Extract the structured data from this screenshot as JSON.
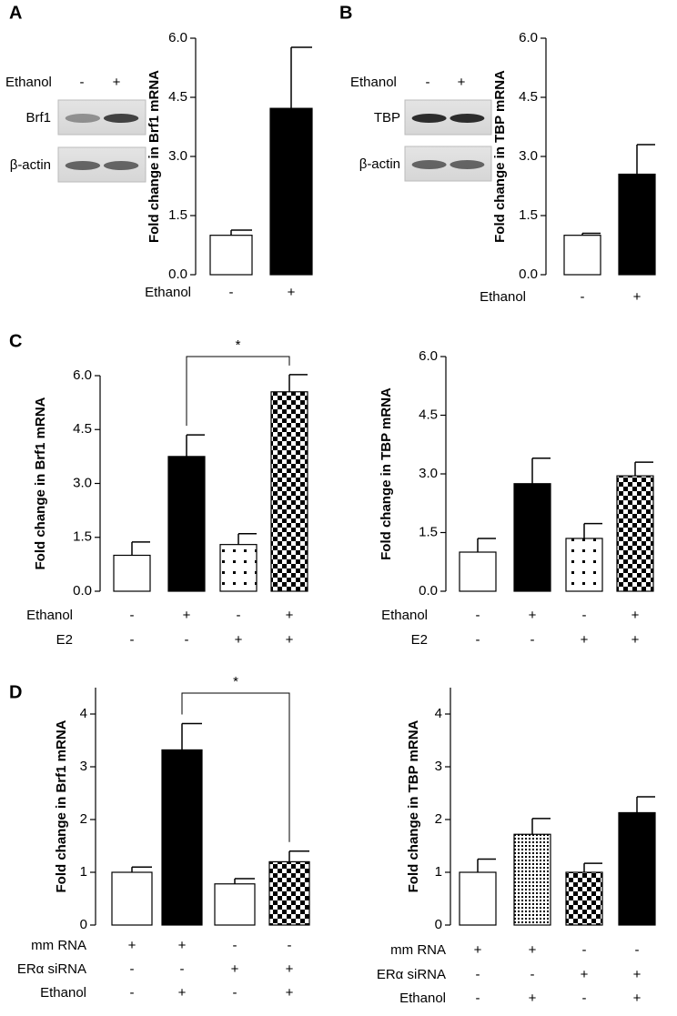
{
  "chart_data": [
    {
      "type": "bar",
      "panel": "A",
      "ylabel": "Fold change in Brf1 mRNA",
      "blot": {
        "header": "Ethanol",
        "lanes": [
          "-",
          "+"
        ],
        "rows": [
          "Brf1",
          "β-actin"
        ]
      },
      "ylim": [
        0,
        6
      ],
      "yticks": [
        {
          "value": 0,
          "label": "0.0"
        },
        {
          "value": 1.5,
          "label": "1.5"
        },
        {
          "value": 3,
          "label": "3.0"
        },
        {
          "value": 4.5,
          "label": "4.5"
        },
        {
          "value": 6,
          "label": "6.0"
        }
      ],
      "values": [
        1.0,
        4.22
      ],
      "errors": [
        0.13,
        1.55
      ],
      "fills": [
        "white",
        "black"
      ],
      "condition_rows": [
        {
          "label": "Ethanol",
          "marks": [
            "-",
            "+"
          ]
        }
      ]
    },
    {
      "type": "bar",
      "panel": "B",
      "ylabel": "Fold change in TBP mRNA",
      "blot": {
        "header": "Ethanol",
        "lanes": [
          "-",
          "+"
        ],
        "rows": [
          "TBP",
          "β-actin"
        ]
      },
      "ylim": [
        0,
        6
      ],
      "yticks": [
        {
          "value": 0,
          "label": "0.0"
        },
        {
          "value": 1.5,
          "label": "1.5"
        },
        {
          "value": 3,
          "label": "3.0"
        },
        {
          "value": 4.5,
          "label": "4.5"
        },
        {
          "value": 6,
          "label": "6.0"
        }
      ],
      "values": [
        1.0,
        2.55
      ],
      "errors": [
        0.05,
        0.75
      ],
      "fills": [
        "white",
        "black"
      ],
      "condition_rows": [
        {
          "label": "Ethanol",
          "marks": [
            "-",
            "+"
          ]
        }
      ]
    },
    {
      "type": "bar",
      "panel": "C",
      "ylabel": "Fold change in Brf1 mRNA",
      "significance": "*",
      "ylim": [
        0,
        6
      ],
      "yticks": [
        {
          "value": 0,
          "label": "0.0"
        },
        {
          "value": 1.5,
          "label": "1.5"
        },
        {
          "value": 3,
          "label": "3.0"
        },
        {
          "value": 4.5,
          "label": "4.5"
        },
        {
          "value": 6,
          "label": "6.0"
        }
      ],
      "values": [
        1.0,
        3.75,
        1.3,
        5.55
      ],
      "errors": [
        0.37,
        0.6,
        0.3,
        0.48
      ],
      "fills": [
        "white",
        "black",
        "dots",
        "checker"
      ],
      "condition_rows": [
        {
          "label": "Ethanol",
          "marks": [
            "-",
            "+",
            "-",
            "+"
          ]
        },
        {
          "label": "E2",
          "marks": [
            "-",
            "-",
            "+",
            "+"
          ]
        }
      ]
    },
    {
      "type": "bar",
      "ylabel": "Fold change in TBP mRNA",
      "ylim": [
        0,
        6
      ],
      "yticks": [
        {
          "value": 0,
          "label": "0.0"
        },
        {
          "value": 1.5,
          "label": "1.5"
        },
        {
          "value": 3,
          "label": "3.0"
        },
        {
          "value": 4.5,
          "label": "4.5"
        },
        {
          "value": 6,
          "label": "6.0"
        }
      ],
      "values": [
        1.0,
        2.75,
        1.35,
        2.95
      ],
      "errors": [
        0.35,
        0.65,
        0.38,
        0.35
      ],
      "fills": [
        "white",
        "black",
        "dots",
        "checker"
      ],
      "condition_rows": [
        {
          "label": "Ethanol",
          "marks": [
            "-",
            "+",
            "-",
            "+"
          ]
        },
        {
          "label": "E2",
          "marks": [
            "-",
            "-",
            "+",
            "+"
          ]
        }
      ]
    },
    {
      "type": "bar",
      "panel": "D",
      "ylabel": "Fold change in Brf1 mRNA",
      "significance": "*",
      "ylim": [
        0,
        4.5
      ],
      "yticks": [
        0,
        1,
        2,
        3,
        4
      ],
      "values": [
        1.0,
        3.32,
        0.78,
        1.2
      ],
      "errors": [
        0.1,
        0.5,
        0.1,
        0.2
      ],
      "fills": [
        "white",
        "black",
        "white",
        "checker"
      ],
      "condition_rows": [
        {
          "label": "mm RNA",
          "marks": [
            "+",
            "+",
            "-",
            "-"
          ]
        },
        {
          "label": "ERα siRNA",
          "marks": [
            "-",
            "-",
            "+",
            "+"
          ]
        },
        {
          "label": "Ethanol",
          "marks": [
            "-",
            "+",
            "-",
            "+"
          ]
        }
      ]
    },
    {
      "type": "bar",
      "ylabel": "Fold change in TBP mRNA",
      "ylim": [
        0,
        4.5
      ],
      "yticks": [
        0,
        1,
        2,
        3,
        4
      ],
      "values": [
        1.0,
        1.72,
        1.0,
        2.13
      ],
      "errors": [
        0.25,
        0.3,
        0.17,
        0.3
      ],
      "fills": [
        "white",
        "finedots",
        "checker",
        "black"
      ],
      "condition_rows": [
        {
          "label": "mm RNA",
          "marks": [
            "+",
            "+",
            "-",
            "-"
          ]
        },
        {
          "label": "ERα siRNA",
          "marks": [
            "-",
            "-",
            "+",
            "+"
          ]
        },
        {
          "label": "Ethanol",
          "marks": [
            "-",
            "+",
            "-",
            "+"
          ]
        }
      ]
    }
  ]
}
